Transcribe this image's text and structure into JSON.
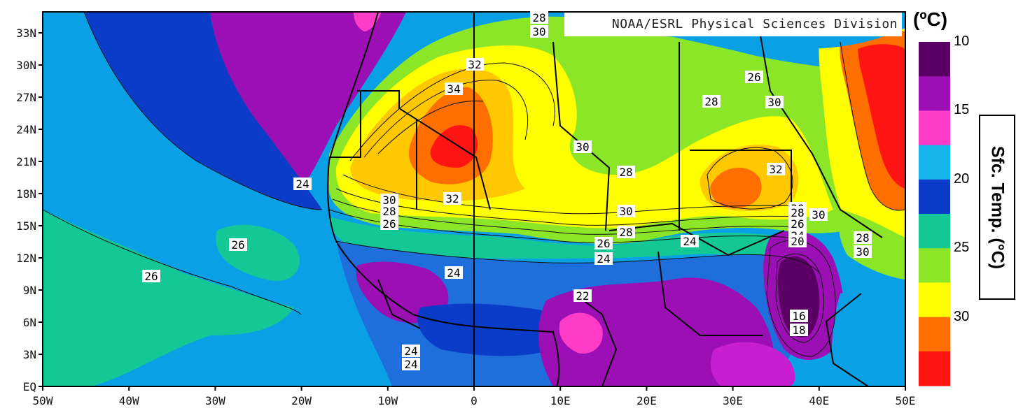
{
  "credit": "NOAA/ESRL Physical Sciences Division",
  "unit_label": "(ºC)",
  "colorbar_title": "Sfc. Temp. (°C)",
  "colorbar": {
    "labels": [
      "10",
      "15",
      "20",
      "25",
      "30"
    ],
    "colors": [
      "#5a0064",
      "#9b0fb4",
      "#ff3cc8",
      "#17b4eb",
      "#0a3cc8",
      "#14c896",
      "#8ce628",
      "#ffff00",
      "#ff6e00",
      "#ff1414"
    ]
  },
  "map_colors": {
    "c10": "#5a0064",
    "c12": "#9b0fb4",
    "c14": "#c81ed2",
    "c16": "#ff3cc8",
    "c18": "#17b4eb",
    "c20": "#0a3cc8",
    "c22": "#1e6edc",
    "c24": "#0aa0e6",
    "c26": "#14c896",
    "c28": "#8ce628",
    "c30": "#ffff00",
    "c32": "#ffc800",
    "c34": "#ff6e00",
    "c36": "#ff1414"
  },
  "x_axis": {
    "ticks": [
      "50W",
      "40W",
      "30W",
      "20W",
      "10W",
      "0",
      "10E",
      "20E",
      "30E",
      "40E",
      "50E"
    ]
  },
  "y_axis": {
    "ticks": [
      "33N",
      "30N",
      "27N",
      "24N",
      "21N",
      "18N",
      "15N",
      "12N",
      "9N",
      "6N",
      "3N",
      "EQ"
    ]
  },
  "contour_labels": [
    "28",
    "30",
    "32",
    "34",
    "26",
    "28",
    "30",
    "24",
    "30",
    "28",
    "32",
    "30",
    "28",
    "26",
    "32",
    "30",
    "28",
    "26",
    "24",
    "30",
    "26",
    "24",
    "28",
    "30",
    "24",
    "22",
    "20",
    "26",
    "24",
    "16",
    "18",
    "24",
    "24",
    "26",
    "30",
    "28"
  ]
}
